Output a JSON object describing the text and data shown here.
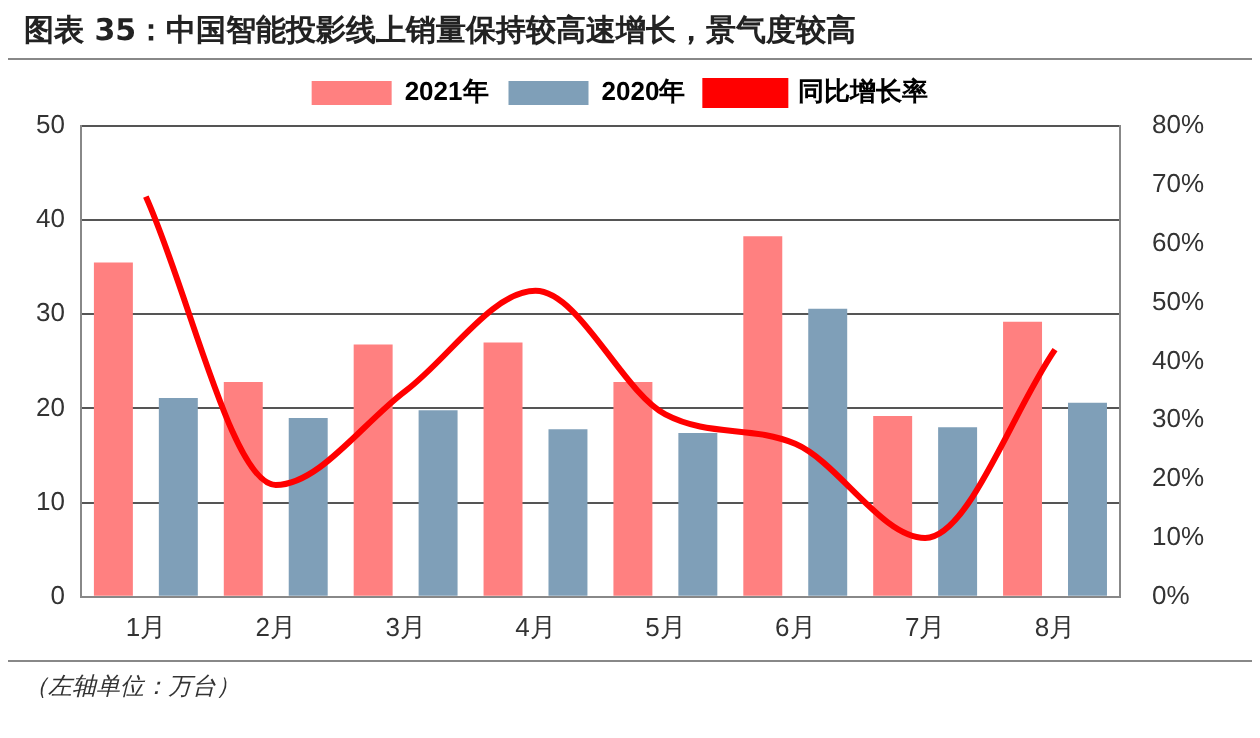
{
  "chart_data": {
    "type": "bar",
    "title": "图表 35：中国智能投影线上销量保持较高速增长，景气度较高",
    "categories": [
      "1月",
      "2月",
      "3月",
      "4月",
      "5月",
      "6月",
      "7月",
      "8月"
    ],
    "series": [
      {
        "name": "2021年",
        "color": "#ff8080",
        "values": [
          35.5,
          22.8,
          26.8,
          27,
          22.8,
          38.3,
          19.2,
          29.2
        ]
      },
      {
        "name": "2020年",
        "color": "#7f9fb8",
        "values": [
          21.1,
          19,
          19.8,
          17.8,
          17.4,
          30.6,
          18,
          20.6
        ]
      },
      {
        "name": "同比增长率",
        "type": "line",
        "axis": "y2",
        "color": "#ff0000",
        "values": [
          68,
          19,
          35,
          52,
          31,
          26,
          10,
          42
        ]
      }
    ],
    "ylim": [
      0,
      50
    ],
    "yticks": [
      0,
      10,
      20,
      30,
      40,
      50
    ],
    "y2lim": [
      0,
      80
    ],
    "y2ticks": [
      {
        "value": 0,
        "label": "0%"
      },
      {
        "value": 10,
        "label": "10%"
      },
      {
        "value": 20,
        "label": "20%"
      },
      {
        "value": 30,
        "label": "30%"
      },
      {
        "value": 40,
        "label": "40%"
      },
      {
        "value": 50,
        "label": "50%"
      },
      {
        "value": 60,
        "label": "60%"
      },
      {
        "value": 70,
        "label": "70%"
      },
      {
        "value": 80,
        "label": "80%"
      }
    ],
    "grid": "y",
    "legend": "top",
    "marker": "none",
    "annotations": [
      "（左轴单位：万台）"
    ]
  }
}
